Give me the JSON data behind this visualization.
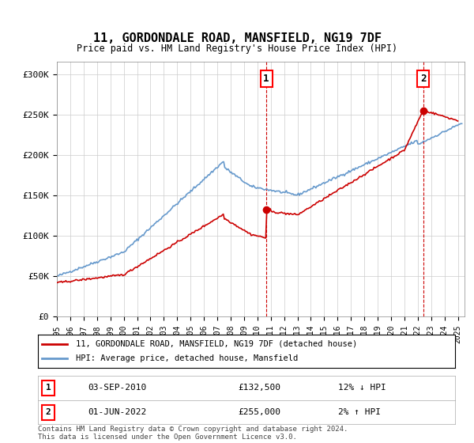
{
  "title": "11, GORDONDALE ROAD, MANSFIELD, NG19 7DF",
  "subtitle": "Price paid vs. HM Land Registry's House Price Index (HPI)",
  "ytick_values": [
    0,
    50000,
    100000,
    150000,
    200000,
    250000,
    300000
  ],
  "ylim": [
    0,
    315000
  ],
  "xlim_start": 1995.0,
  "xlim_end": 2025.5,
  "hpi_color": "#6699cc",
  "price_color": "#cc0000",
  "marker1_date": 2010.67,
  "marker2_date": 2022.42,
  "marker1_price": 132500,
  "marker2_price": 255000,
  "marker1_label": "1",
  "marker2_label": "2",
  "legend_line1": "11, GORDONDALE ROAD, MANSFIELD, NG19 7DF (detached house)",
  "legend_line2": "HPI: Average price, detached house, Mansfield",
  "table_row1_num": "1",
  "table_row1_date": "03-SEP-2010",
  "table_row1_price": "£132,500",
  "table_row1_hpi": "12% ↓ HPI",
  "table_row2_num": "2",
  "table_row2_date": "01-JUN-2022",
  "table_row2_price": "£255,000",
  "table_row2_hpi": "2% ↑ HPI",
  "footer": "Contains HM Land Registry data © Crown copyright and database right 2024.\nThis data is licensed under the Open Government Licence v3.0.",
  "background_color": "#ffffff",
  "grid_color": "#cccccc"
}
